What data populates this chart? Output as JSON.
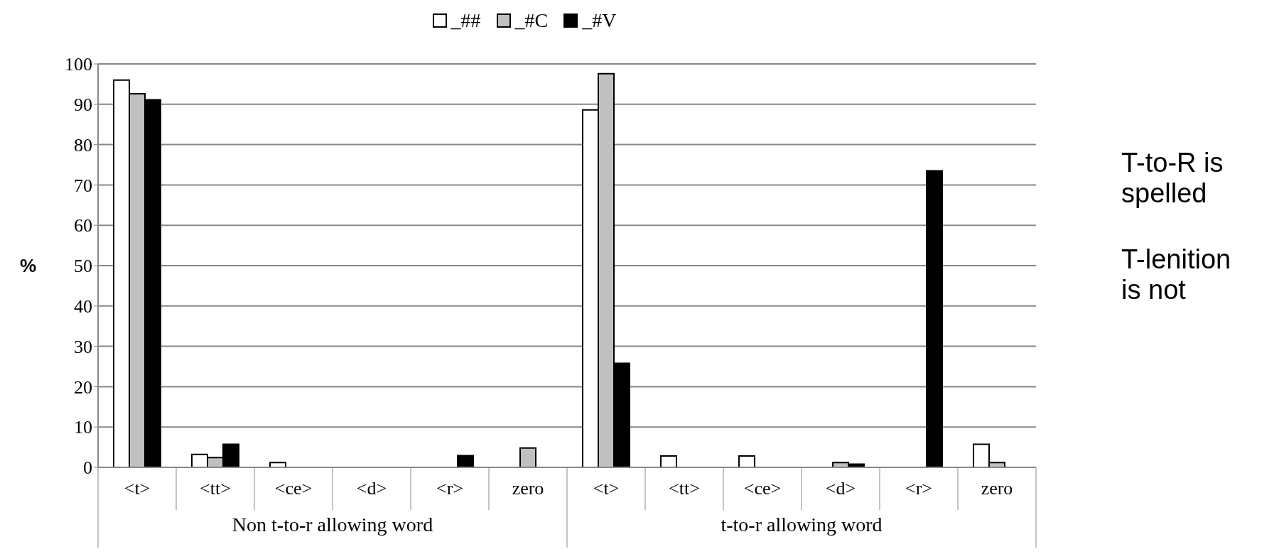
{
  "chart_data": {
    "type": "bar",
    "ylabel": "%",
    "categories": [
      "<t>",
      "<tt>",
      "<ce>",
      "<d>",
      "<r>",
      "zero",
      "<t>",
      "<tt>",
      "<ce>",
      "<d>",
      "<r>",
      "zero"
    ],
    "series": [
      {
        "name": "_##",
        "color": "#ffffff",
        "values": [
          96,
          3.2,
          1.2,
          0,
          0,
          0,
          88.6,
          2.8,
          2.8,
          0,
          0,
          5.7
        ]
      },
      {
        "name": "_#C",
        "color": "#c0c0c0",
        "values": [
          92.6,
          2.4,
          0,
          0,
          0,
          4.8,
          97.6,
          0,
          0,
          1.2,
          0,
          1.2
        ]
      },
      {
        "name": "_#V",
        "color": "#000000",
        "values": [
          91.1,
          5.7,
          0,
          0,
          2.9,
          0,
          25.8,
          0,
          0,
          0.8,
          73.5,
          0
        ]
      }
    ],
    "annotations": [
      "Non t-to-r allowing word",
      "t-to-r allowing word",
      "T-to-R is spelled",
      "T-lenition is not"
    ],
    "ylim": [
      0,
      100
    ],
    "yticks": [
      0,
      10,
      20,
      30,
      40,
      50,
      60,
      70,
      80,
      90,
      100
    ],
    "grid": "y",
    "legend": "top"
  }
}
